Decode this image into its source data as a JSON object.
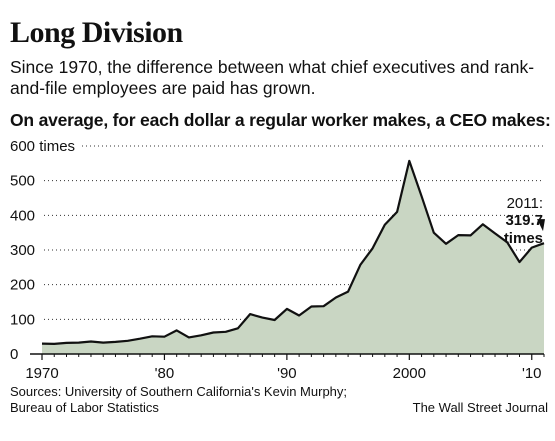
{
  "header": {
    "title": "Long Division",
    "subtitle": "Since 1970, the difference between what chief executives and rank-and-file employees are paid has grown.",
    "prompt": "On average, for each dollar a regular worker makes, a CEO makes:"
  },
  "footer": {
    "source_line1": "Sources: University of Southern California's Kevin Murphy;",
    "source_line2": "Bureau of Labor Statistics",
    "credit": "The Wall Street Journal"
  },
  "chart_data": {
    "type": "area",
    "title": "",
    "xlabel": "",
    "ylabel": "",
    "unit_label": "times",
    "xlim": [
      1970,
      2011
    ],
    "ylim": [
      0,
      600
    ],
    "y_ticks": [
      0,
      100,
      200,
      300,
      400,
      500,
      600
    ],
    "y_tick_labels": [
      "0",
      "100",
      "200",
      "300",
      "400",
      "500",
      "600 times"
    ],
    "x_ticks": [
      1970,
      1980,
      1990,
      2000,
      2010
    ],
    "x_tick_labels": [
      "1970",
      "'80",
      "'90",
      "2000",
      "'10"
    ],
    "grid": "horizontal dotted",
    "colors": {
      "fill": "#c9d6c3",
      "line": "#111111"
    },
    "series": [
      {
        "x": [
          1970,
          1971,
          1972,
          1973,
          1974,
          1975,
          1976,
          1977,
          1978,
          1979,
          1980,
          1981,
          1982,
          1983,
          1984,
          1985,
          1986,
          1987,
          1988,
          1989,
          1990,
          1991,
          1992,
          1993,
          1994,
          1995,
          1996,
          1997,
          1998,
          1999,
          2000,
          2001,
          2002,
          2003,
          2004,
          2005,
          2006,
          2007,
          2008,
          2009,
          2010,
          2011
        ],
        "values": [
          30,
          29,
          32,
          33,
          36,
          33,
          35,
          38,
          44,
          51,
          50,
          68,
          48,
          54,
          62,
          64,
          74,
          115,
          105,
          98,
          130,
          111,
          137,
          138,
          163,
          180,
          257,
          305,
          373,
          410,
          557,
          455,
          350,
          318,
          343,
          342,
          374,
          348,
          322,
          265,
          307,
          319.7
        ]
      }
    ],
    "annotation": {
      "label": "2011:",
      "value": "319.7",
      "unit": "times",
      "x": 2011,
      "y": 319.7
    }
  }
}
